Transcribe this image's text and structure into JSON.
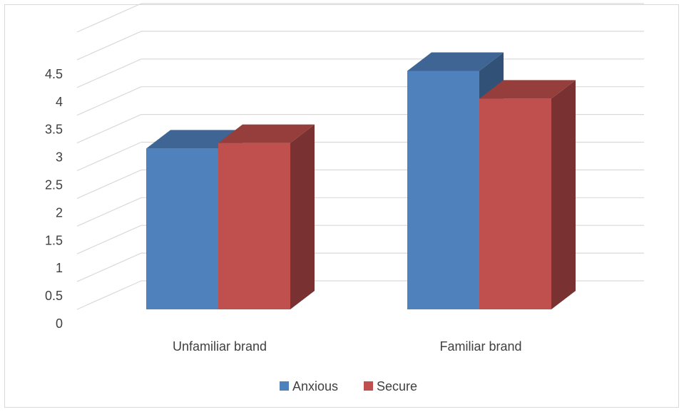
{
  "chart_data": {
    "type": "bar",
    "title": "",
    "xlabel": "",
    "ylabel": "",
    "ylim": [
      0,
      4.5
    ],
    "y_ticks": [
      "0",
      "0.5",
      "1",
      "1.5",
      "2",
      "2.5",
      "3",
      "3.5",
      "4",
      "4.5"
    ],
    "categories": [
      "Unfamiliar brand",
      "Familiar brand"
    ],
    "series": [
      {
        "name": "Anxious",
        "values": [
          2.9,
          4.3
        ],
        "color": "#4f81bd"
      },
      {
        "name": "Secure",
        "values": [
          3.0,
          3.8
        ],
        "color": "#c0504d"
      }
    ],
    "grid": true,
    "legend": "bottom",
    "style": "3d-clustered-column"
  }
}
